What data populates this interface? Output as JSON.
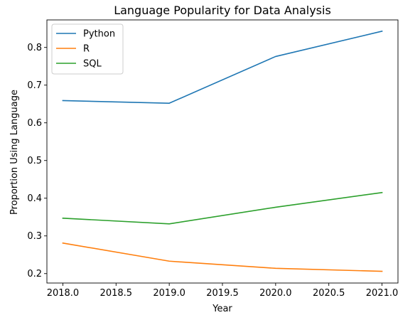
{
  "chart_data": {
    "type": "line",
    "title": "Language Popularity for Data Analysis",
    "xlabel": "Year",
    "ylabel": "Proportion Using Language",
    "x": [
      2018.0,
      2019.0,
      2020.0,
      2021.0
    ],
    "xlim": [
      2017.85,
      2021.15
    ],
    "ylim": [
      0.175,
      0.873
    ],
    "xticks": [
      2018.0,
      2018.5,
      2019.0,
      2019.5,
      2020.0,
      2020.5,
      2021.0
    ],
    "xtick_labels": [
      "2018.0",
      "2018.5",
      "2019.0",
      "2019.5",
      "2020.0",
      "2020.5",
      "2021.0"
    ],
    "yticks": [
      0.2,
      0.3,
      0.4,
      0.5,
      0.6,
      0.7,
      0.8
    ],
    "ytick_labels": [
      "0.2",
      "0.3",
      "0.4",
      "0.5",
      "0.6",
      "0.7",
      "0.8"
    ],
    "grid": false,
    "legend_position": "upper left",
    "series": [
      {
        "name": "Python",
        "color": "#1f77b4",
        "values": [
          0.659,
          0.652,
          0.776,
          0.843
        ]
      },
      {
        "name": "R",
        "color": "#ff7f0e",
        "values": [
          0.281,
          0.233,
          0.214,
          0.206
        ]
      },
      {
        "name": "SQL",
        "color": "#2ca02c",
        "values": [
          0.347,
          0.332,
          0.376,
          0.415
        ]
      }
    ]
  }
}
